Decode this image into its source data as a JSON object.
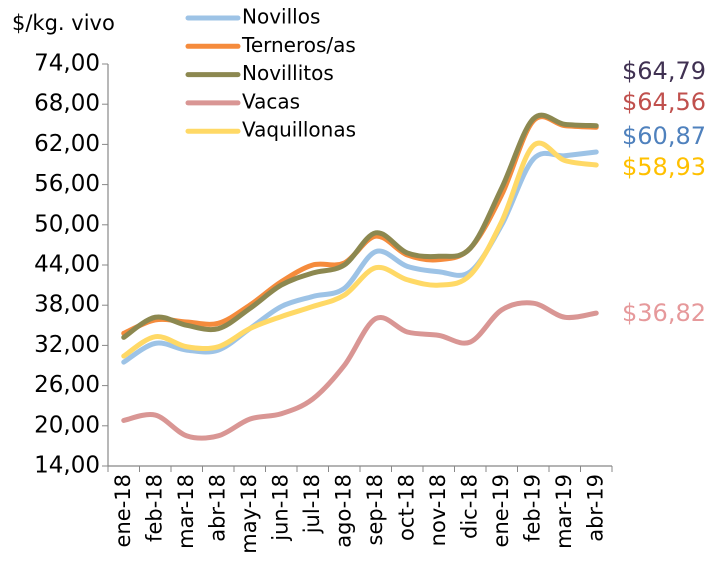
{
  "chart_data": {
    "type": "line",
    "y_label": "$/kg. vivo",
    "categories": [
      "ene-18",
      "feb-18",
      "mar-18",
      "abr-18",
      "may-18",
      "jun-18",
      "jul-18",
      "ago-18",
      "sep-18",
      "oct-18",
      "nov-18",
      "dic-18",
      "ene-19",
      "feb-19",
      "mar-19",
      "abr-19"
    ],
    "series": [
      {
        "name": "Novillos",
        "color": "#9dc3e6",
        "label_color": "#4f81bd",
        "values": [
          29.5,
          32.3,
          31.3,
          31.3,
          34.5,
          37.8,
          39.3,
          40.5,
          46,
          43.8,
          43,
          43,
          50,
          59.8,
          60.3,
          60.87
        ],
        "value_labels": [
          null,
          null,
          null,
          null,
          null,
          null,
          null,
          null,
          null,
          null,
          null,
          null,
          null,
          null,
          null,
          "$60,87"
        ]
      },
      {
        "name": "Terneros/as",
        "color": "#f58b3c",
        "label_color": "#c0504d",
        "values": [
          33.8,
          35.8,
          35.5,
          35.3,
          38,
          41.5,
          44,
          44.3,
          48.3,
          45.5,
          44.8,
          46.5,
          54.5,
          65.5,
          64.8,
          64.56
        ],
        "value_labels": [
          null,
          null,
          null,
          null,
          null,
          null,
          null,
          null,
          null,
          null,
          null,
          null,
          null,
          null,
          null,
          "$64,56"
        ]
      },
      {
        "name": "Novillitos",
        "color": "#8c8850",
        "label_color": "#403152",
        "values": [
          33.2,
          36.2,
          35,
          34.5,
          37.5,
          41,
          42.8,
          44,
          48.8,
          45.8,
          45.3,
          46.5,
          55.5,
          65.8,
          65,
          64.79
        ],
        "value_labels": [
          null,
          null,
          null,
          null,
          null,
          null,
          null,
          null,
          null,
          null,
          null,
          null,
          null,
          null,
          null,
          "$64,79"
        ]
      },
      {
        "name": "Vacas",
        "color": "#d99694",
        "label_color": "#e6999b",
        "values": [
          20.8,
          21.6,
          18.5,
          18.5,
          21,
          21.8,
          24,
          29,
          36,
          34,
          33.5,
          32.5,
          37.3,
          38.3,
          36.2,
          36.82
        ],
        "value_labels": [
          null,
          null,
          null,
          null,
          null,
          null,
          null,
          null,
          null,
          null,
          null,
          null,
          null,
          null,
          null,
          "$36,82"
        ]
      },
      {
        "name": "Vaquillonas",
        "color": "#ffd966",
        "label_color": "#ffc000",
        "values": [
          30.4,
          33.3,
          31.8,
          31.8,
          34.5,
          36.3,
          37.8,
          39.5,
          43.6,
          41.8,
          41,
          42.5,
          50.5,
          61.8,
          59.6,
          58.93
        ],
        "value_labels": [
          null,
          null,
          null,
          null,
          null,
          null,
          null,
          null,
          null,
          null,
          null,
          null,
          null,
          null,
          null,
          "$58,93"
        ]
      }
    ],
    "ylim": [
      14,
      74
    ],
    "yticks": [
      {
        "value": 14,
        "label": "14,00"
      },
      {
        "value": 20,
        "label": "20,00"
      },
      {
        "value": 26,
        "label": "26,00"
      },
      {
        "value": 32,
        "label": "32,00"
      },
      {
        "value": 38,
        "label": "38,00"
      },
      {
        "value": 44,
        "label": "44,00"
      },
      {
        "value": 50,
        "label": "50,00"
      },
      {
        "value": 56,
        "label": "56,00"
      },
      {
        "value": 62,
        "label": "62,00"
      },
      {
        "value": 68,
        "label": "68,00"
      },
      {
        "value": 74,
        "label": "74,00"
      }
    ],
    "grid": false
  }
}
